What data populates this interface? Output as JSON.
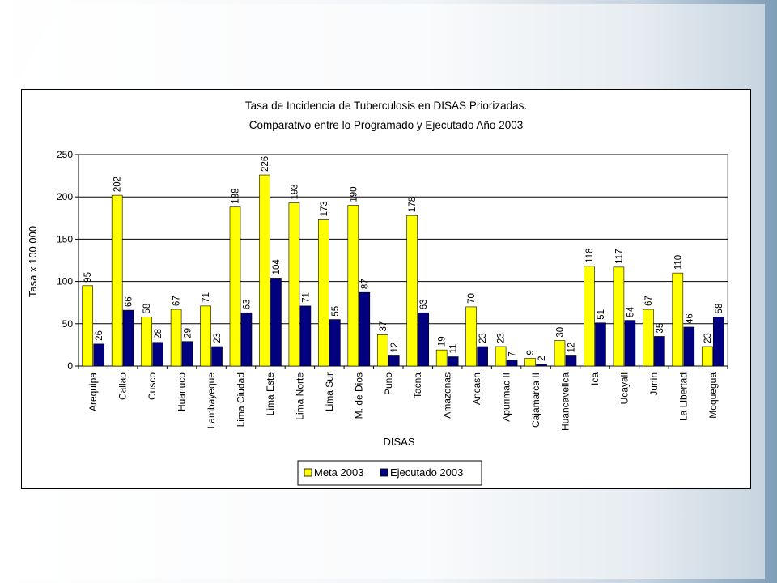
{
  "chart_data": {
    "type": "bar",
    "title": [
      "Tasa de Incidencia de Tuberculosis en DISAS Priorizadas.",
      "Comparativo entre lo Programado y Ejecutado Año  2003"
    ],
    "xlabel": "DISAS",
    "ylabel": "Tasa x 100 000",
    "ylim": [
      0,
      250
    ],
    "yticks": [
      0,
      50,
      100,
      150,
      200,
      250
    ],
    "grid": true,
    "legend_position": "bottom",
    "categories": [
      "Arequipa",
      "Callao",
      "Cusco",
      "Huanuco",
      "Lambayeque",
      "Lima Ciudad",
      "Lima Este",
      "Lima Norte",
      "Lima Sur",
      "M. de Dios",
      "Puno",
      "Tacna",
      "Amazonas",
      "Ancash",
      "Apurimac II",
      "Cajamarca II",
      "Huancavelica",
      "Ica",
      "Ucayali",
      "Junin",
      "La Libertad",
      "Moquegua"
    ],
    "series": [
      {
        "name": "Meta 2003",
        "color": "#ffff00",
        "values": [
          95,
          202,
          58,
          67,
          71,
          188,
          226,
          193,
          173,
          190,
          37,
          178,
          19,
          70,
          23,
          9,
          30,
          118,
          117,
          67,
          110,
          23
        ]
      },
      {
        "name": "Ejecutado 2003",
        "color": "#000080",
        "values": [
          26,
          66,
          28,
          29,
          23,
          63,
          104,
          71,
          55,
          87,
          12,
          63,
          11,
          23,
          7,
          2,
          12,
          51,
          54,
          35,
          46,
          58
        ]
      }
    ]
  }
}
